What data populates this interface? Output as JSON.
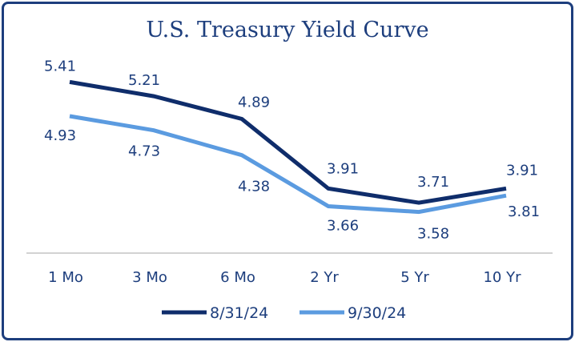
{
  "chart_data": {
    "type": "line",
    "title": "U.S. Treasury Yield Curve",
    "xlabel": "",
    "ylabel": "",
    "categories": [
      "1 Mo",
      "3 Mo",
      "6 Mo",
      "2 Yr",
      "5 Yr",
      "10 Yr"
    ],
    "series": [
      {
        "name": "8/31/24",
        "values": [
          5.41,
          5.21,
          4.89,
          3.91,
          3.71,
          3.91
        ],
        "color": "#0f2d6b",
        "labels": [
          "5.41",
          "5.21",
          "4.89",
          "3.91",
          "3.71",
          "3.91"
        ]
      },
      {
        "name": "9/30/24",
        "values": [
          4.93,
          4.73,
          4.38,
          3.66,
          3.58,
          3.81
        ],
        "color": "#5b9be0",
        "labels": [
          "4.93",
          "4.73",
          "4.38",
          "3.66",
          "3.58",
          "3.81"
        ]
      }
    ],
    "ylim": [
      3.0,
      5.9
    ],
    "grid": false,
    "legend": "bottom"
  }
}
